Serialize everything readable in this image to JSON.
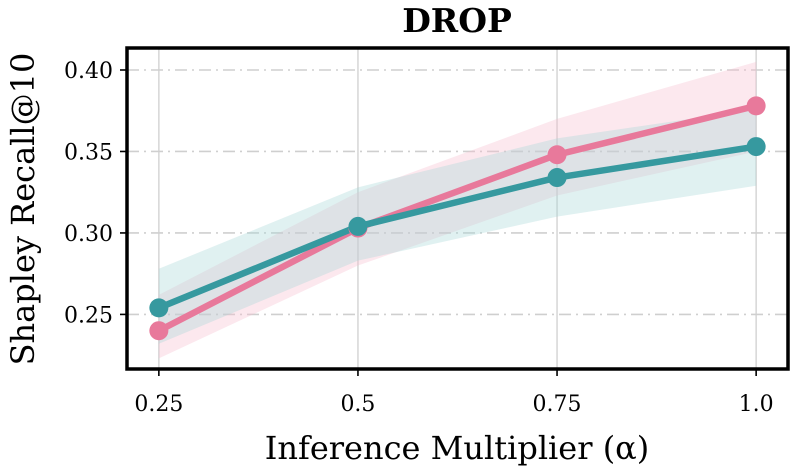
{
  "chart_data": {
    "type": "line",
    "title": "DROP",
    "xlabel": "Inference Multiplier (α)",
    "ylabel": "Shapley Recall@10",
    "categories": [
      "0.25",
      "0.5",
      "0.75",
      "1.0"
    ],
    "x": [
      0.25,
      0.5,
      0.75,
      1.0
    ],
    "xlim": [
      0.21,
      1.04
    ],
    "ylim": [
      0.2165,
      0.4135
    ],
    "yticks": [
      0.25,
      0.3,
      0.35,
      0.4
    ],
    "ytick_labels": [
      "0.25",
      "0.30",
      "0.35",
      "0.40"
    ],
    "grid": true,
    "series": [
      {
        "name": "pink",
        "color": "#e8799b",
        "band_color": "#f5bccd",
        "values": [
          0.24,
          0.303,
          0.348,
          0.378
        ],
        "lower": [
          0.223,
          0.28,
          0.323,
          0.35
        ],
        "upper": [
          0.262,
          0.325,
          0.37,
          0.405
        ]
      },
      {
        "name": "teal",
        "color": "#36999f",
        "band_color": "#a6d6d6",
        "values": [
          0.254,
          0.304,
          0.334,
          0.353
        ],
        "lower": [
          0.232,
          0.283,
          0.31,
          0.329
        ],
        "upper": [
          0.278,
          0.328,
          0.358,
          0.376
        ]
      }
    ]
  }
}
